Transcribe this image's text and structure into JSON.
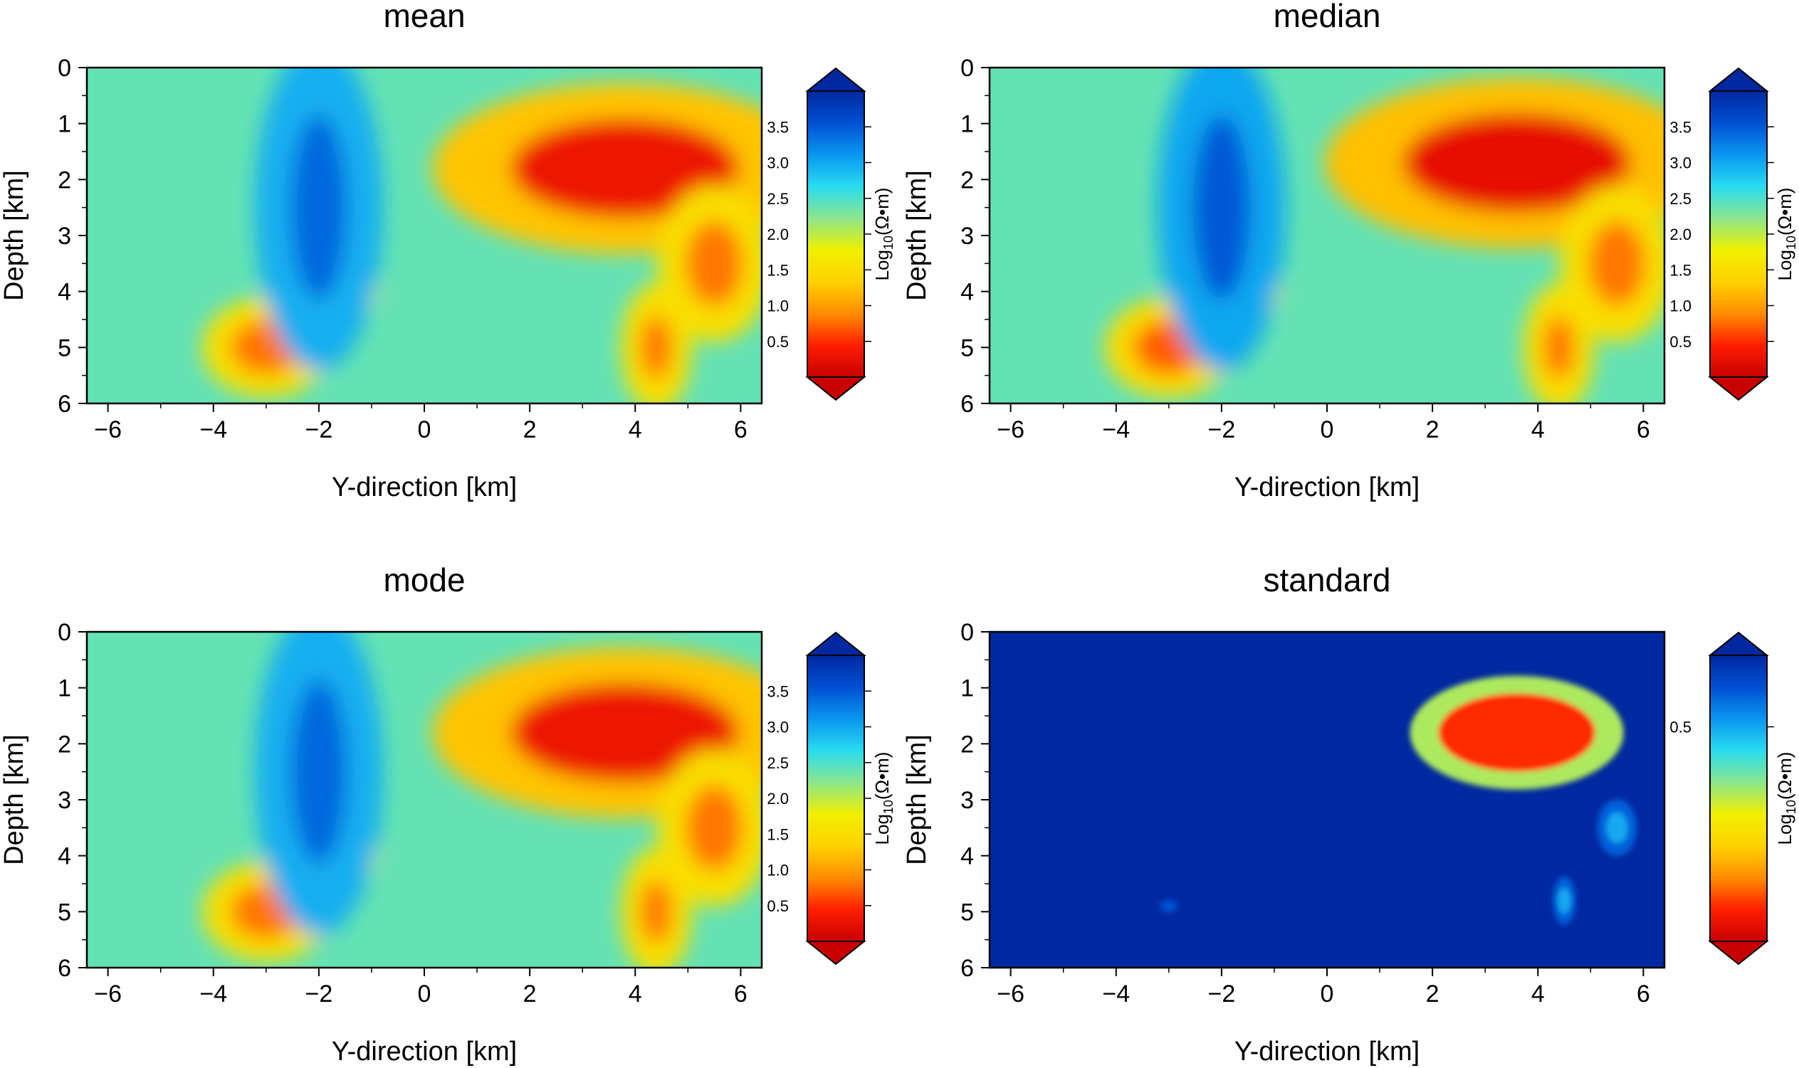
{
  "figure": {
    "panel_titles": [
      "mean",
      "median",
      "mode",
      "standard"
    ]
  },
  "chart_data": [
    {
      "type": "heatmap",
      "title": "mean",
      "xlabel": "Y-direction [km]",
      "ylabel": "Depth [km]",
      "xlim": [
        -6.4,
        6.4
      ],
      "ylim": [
        6,
        0
      ],
      "xticks": [
        -6,
        -4,
        -2,
        0,
        2,
        4,
        6
      ],
      "yticks": [
        0,
        1,
        2,
        3,
        4,
        5,
        6
      ],
      "colorbar": {
        "label_prefix": "Log",
        "label_sub": "10",
        "label_suffix": "(Ω•m)",
        "ticks": [
          "0.5",
          "1.0",
          "1.5",
          "2.0",
          "2.5",
          "3.0",
          "3.5"
        ],
        "range": [
          0,
          4
        ],
        "extend": "both",
        "colors": [
          "#c80000",
          "#ff1e00",
          "#ff8c00",
          "#ffd200",
          "#f0f000",
          "#8ce68c",
          "#28dcf0",
          "#0a96f0",
          "#0050d2",
          "#0028a0"
        ]
      },
      "background_value": 2.4,
      "features": [
        {
          "name": "conductor-top",
          "x": 3.8,
          "depth": 1.8,
          "value": 0.3
        },
        {
          "name": "conductor-lobe",
          "x": 5.5,
          "depth": 3.5,
          "value": 0.8
        },
        {
          "name": "conductor-foot",
          "x": 4.4,
          "depth": 5.0,
          "value": 0.8
        },
        {
          "name": "conductor-left",
          "x": -3.0,
          "depth": 5.0,
          "value": 0.8
        },
        {
          "name": "conductor-small",
          "x": -1.4,
          "depth": 4.0,
          "value": 1.5
        },
        {
          "name": "resistor",
          "x": -2.0,
          "depth": 2.5,
          "value": 3.4
        }
      ]
    },
    {
      "type": "heatmap",
      "title": "median",
      "xlabel": "Y-direction [km]",
      "ylabel": "Depth [km]",
      "xlim": [
        -6.4,
        6.4
      ],
      "ylim": [
        6,
        0
      ],
      "xticks": [
        -6,
        -4,
        -2,
        0,
        2,
        4,
        6
      ],
      "yticks": [
        0,
        1,
        2,
        3,
        4,
        5,
        6
      ],
      "colorbar": {
        "label_prefix": "Log",
        "label_sub": "10",
        "label_suffix": "(Ω•m)",
        "ticks": [
          "0.5",
          "1.0",
          "1.5",
          "2.0",
          "2.5",
          "3.0",
          "3.5"
        ],
        "range": [
          0,
          4
        ],
        "extend": "both",
        "colors": [
          "#c80000",
          "#ff1e00",
          "#ff8c00",
          "#ffd200",
          "#f0f000",
          "#8ce68c",
          "#28dcf0",
          "#0a96f0",
          "#0050d2",
          "#0028a0"
        ]
      },
      "background_value": 2.4,
      "features": [
        {
          "name": "conductor-top",
          "x": 3.6,
          "depth": 1.7,
          "value": 0.25
        },
        {
          "name": "conductor-lobe",
          "x": 5.5,
          "depth": 3.5,
          "value": 0.8
        },
        {
          "name": "conductor-foot",
          "x": 4.4,
          "depth": 5.0,
          "value": 0.8
        },
        {
          "name": "conductor-left",
          "x": -3.0,
          "depth": 5.0,
          "value": 0.7
        },
        {
          "name": "conductor-small",
          "x": -1.4,
          "depth": 4.0,
          "value": 1.4
        },
        {
          "name": "resistor",
          "x": -2.0,
          "depth": 2.5,
          "value": 3.5
        }
      ]
    },
    {
      "type": "heatmap",
      "title": "mode",
      "xlabel": "Y-direction [km]",
      "ylabel": "Depth [km]",
      "xlim": [
        -6.4,
        6.4
      ],
      "ylim": [
        6,
        0
      ],
      "xticks": [
        -6,
        -4,
        -2,
        0,
        2,
        4,
        6
      ],
      "yticks": [
        0,
        1,
        2,
        3,
        4,
        5,
        6
      ],
      "colorbar": {
        "label_prefix": "Log",
        "label_sub": "10",
        "label_suffix": "(Ω•m)",
        "ticks": [
          "0.5",
          "1.0",
          "1.5",
          "2.0",
          "2.5",
          "3.0",
          "3.5"
        ],
        "range": [
          0,
          4
        ],
        "extend": "both",
        "colors": [
          "#c80000",
          "#ff1e00",
          "#ff8c00",
          "#ffd200",
          "#f0f000",
          "#8ce68c",
          "#28dcf0",
          "#0a96f0",
          "#0050d2",
          "#0028a0"
        ]
      },
      "background_value": 2.4,
      "features": [
        {
          "name": "conductor-top",
          "x": 3.8,
          "depth": 1.8,
          "value": 0.3
        },
        {
          "name": "conductor-lobe",
          "x": 5.5,
          "depth": 3.5,
          "value": 0.8
        },
        {
          "name": "conductor-foot",
          "x": 4.4,
          "depth": 5.0,
          "value": 0.8
        },
        {
          "name": "conductor-left",
          "x": -3.0,
          "depth": 5.0,
          "value": 0.8
        },
        {
          "name": "conductor-small",
          "x": -1.4,
          "depth": 4.0,
          "value": 1.5
        },
        {
          "name": "resistor",
          "x": -2.0,
          "depth": 2.5,
          "value": 3.4
        }
      ]
    },
    {
      "type": "heatmap",
      "title": "standard",
      "xlabel": "Y-direction [km]",
      "ylabel": "Depth [km]",
      "xlim": [
        -6.4,
        6.4
      ],
      "ylim": [
        6,
        0
      ],
      "xticks": [
        -6,
        -4,
        -2,
        0,
        2,
        4,
        6
      ],
      "yticks": [
        0,
        1,
        2,
        3,
        4,
        5,
        6
      ],
      "colorbar": {
        "label_prefix": "Log",
        "label_sub": "10",
        "label_suffix": "(Ω•m)",
        "ticks": [
          "0.5"
        ],
        "range": [
          0.2,
          0.6
        ],
        "extend": "both",
        "colors": [
          "#c80000",
          "#ff1e00",
          "#ff8c00",
          "#ffd200",
          "#f0f000",
          "#8ce68c",
          "#28dcf0",
          "#0a96f0",
          "#0050d2",
          "#0028a0"
        ]
      },
      "background_value": 0.6,
      "features": [
        {
          "name": "uncertainty-top",
          "x": 3.6,
          "depth": 1.8,
          "value": 0.25
        },
        {
          "name": "uncertainty-lobe",
          "x": 5.5,
          "depth": 3.5,
          "value": 0.5
        },
        {
          "name": "uncertainty-foot",
          "x": 4.5,
          "depth": 4.8,
          "value": 0.5
        },
        {
          "name": "uncertainty-spot",
          "x": -3.0,
          "depth": 4.9,
          "value": 0.55
        }
      ]
    }
  ]
}
